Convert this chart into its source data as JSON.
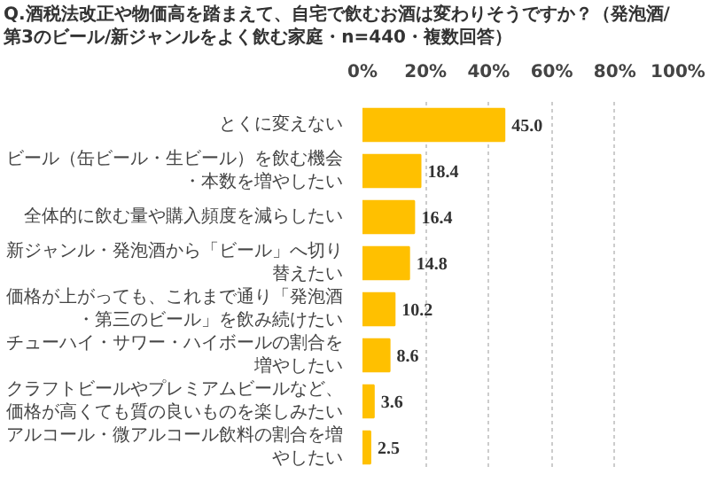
{
  "chart_data": {
    "type": "bar",
    "orientation": "horizontal",
    "title": "Q.酒税法改正や物価高を踏まえて、自宅で飲むお酒は変わりそうですか？（発泡酒/\n第3のビール/新ジャンルをよく飲む家庭・n=440・複数回答）",
    "categories": [
      "とくに変えない",
      "ビール（缶ビール・生ビール）を飲む機会・本数を増やしたい",
      "全体的に飲む量や購入頻度を減らしたい",
      "新ジャンル・発泡酒から「ビール」へ切り替えたい",
      "価格が上がっても、これまで通り「発泡酒・第三のビール」を飲み続けたい",
      "チューハイ・サワー・ハイボールの割合を増やしたい",
      "クラフトビールやプレミアムビールなど、価格が高くても質の良いものを楽しみたい",
      "アルコール・微アルコール飲料の割合を増やしたい"
    ],
    "values": [
      45.0,
      18.4,
      16.4,
      14.8,
      10.2,
      8.6,
      3.6,
      2.5
    ],
    "value_labels": [
      "45.0",
      "18.4",
      "16.4",
      "14.8",
      "10.2",
      "8.6",
      "3.6",
      "2.5"
    ],
    "color": "#ffc000",
    "grid": "x",
    "xlim": [
      0,
      100
    ],
    "xticks": [
      {
        "value": 0,
        "label": "0%"
      },
      {
        "value": 20,
        "label": "20%"
      },
      {
        "value": 40,
        "label": "40%"
      },
      {
        "value": 60,
        "label": "60%"
      },
      {
        "value": 80,
        "label": "80%"
      },
      {
        "value": 100,
        "label": "100%"
      }
    ]
  }
}
